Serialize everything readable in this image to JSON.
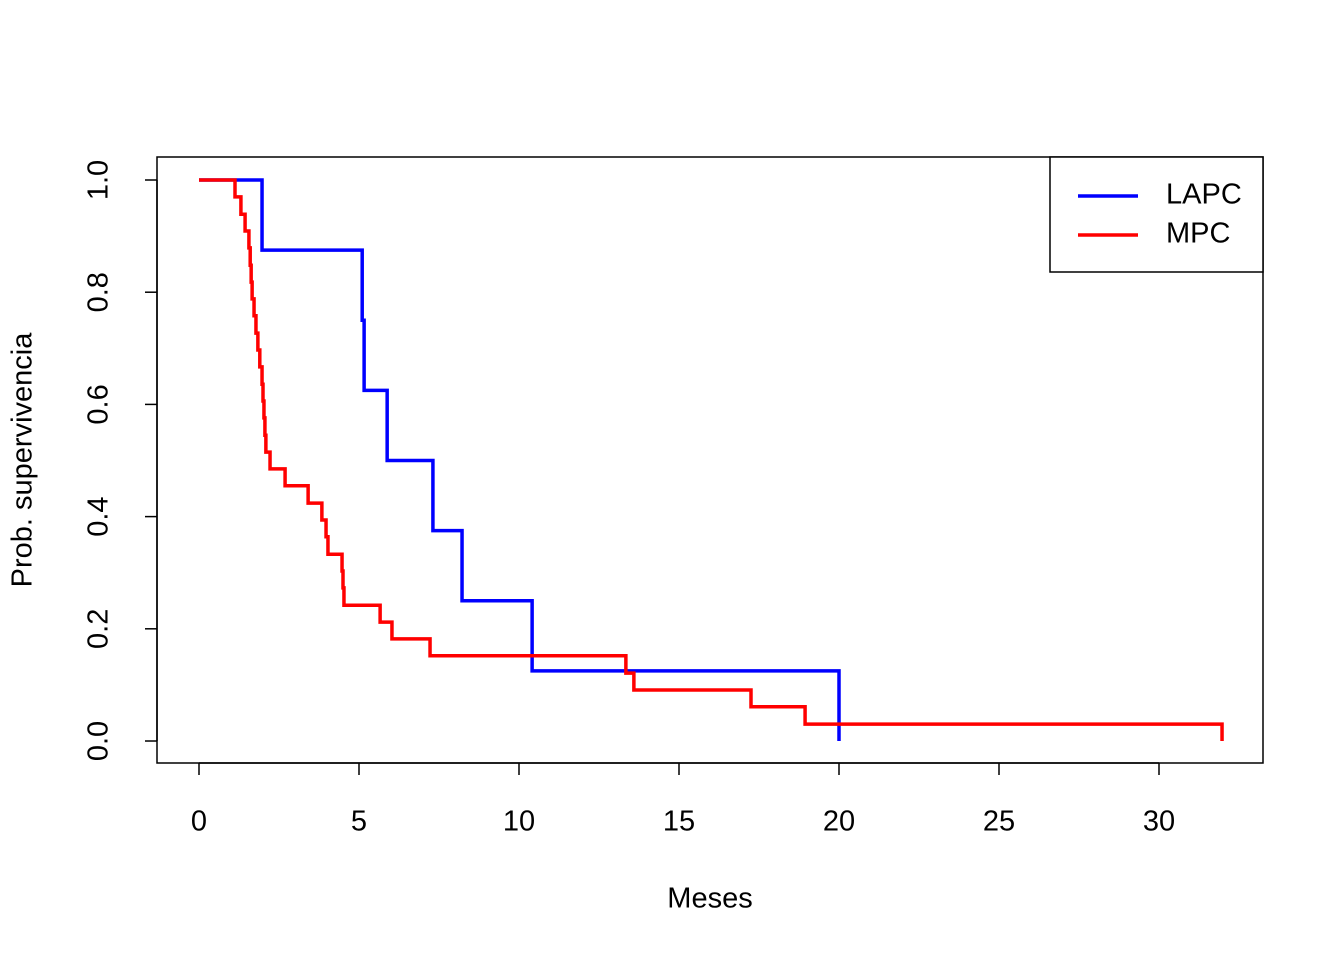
{
  "chart_data": {
    "type": "step",
    "xlabel": "Meses",
    "ylabel": "Prob. supervivencia",
    "series": [
      {
        "name": "LAPC",
        "color": "#0000ff",
        "x": [
          0,
          1.97,
          5.1,
          5.16,
          5.88,
          7.31,
          8.22,
          10.41,
          20
        ],
        "values": [
          1,
          0.875,
          0.75,
          0.625,
          0.5,
          0.375,
          0.25,
          0.125,
          0
        ]
      },
      {
        "name": "MPC",
        "color": "#ff0000",
        "x": [
          0,
          1.125,
          1.31,
          1.44,
          1.56,
          1.6,
          1.63,
          1.66,
          1.72,
          1.78,
          1.84,
          1.9,
          1.97,
          2.0,
          2.03,
          2.06,
          2.09,
          2.22,
          2.69,
          3.41,
          3.84,
          3.97,
          4.03,
          4.47,
          4.5,
          4.53,
          5.66,
          6.03,
          7.22,
          13.34,
          13.59,
          17.25,
          18.94,
          31.97
        ],
        "values": [
          1,
          0.97,
          0.939,
          0.909,
          0.879,
          0.848,
          0.818,
          0.788,
          0.758,
          0.727,
          0.697,
          0.667,
          0.636,
          0.606,
          0.576,
          0.545,
          0.515,
          0.485,
          0.455,
          0.424,
          0.394,
          0.364,
          0.333,
          0.303,
          0.273,
          0.242,
          0.212,
          0.182,
          0.152,
          0.121,
          0.091,
          0.061,
          0.03,
          0
        ]
      }
    ],
    "xlim": [
      -1.3125,
      33.25
    ],
    "xticks": [
      0,
      5,
      10,
      15,
      20,
      25,
      30
    ],
    "ylim": [
      -0.0392,
      1.041
    ],
    "yticks": [
      {
        "value": 0,
        "label": "0.0"
      },
      0.2,
      0.4,
      0.6,
      0.8,
      {
        "value": 1,
        "label": "1.0"
      }
    ],
    "legend": "top-right"
  }
}
